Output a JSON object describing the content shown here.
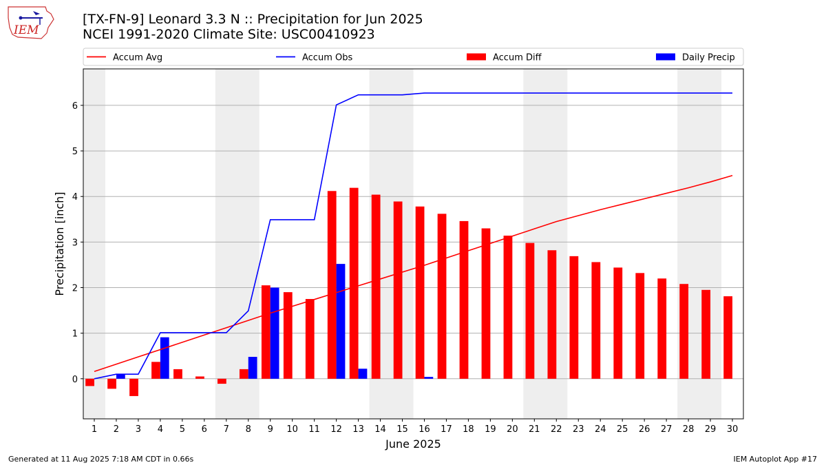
{
  "header": {
    "title_line1": "[TX-FN-9] Leonard 3.3 N :: Precipitation for Jun 2025",
    "title_line2": "NCEI 1991-2020 Climate Site: USC00410923",
    "logo_text": "IEM"
  },
  "footer": {
    "left": "Generated at 11 Aug 2025 7:18 AM CDT in 0.66s",
    "right": "IEM Autoplot App #17"
  },
  "colors": {
    "accum_avg": "#ff0000",
    "accum_obs": "#0000ff",
    "accum_diff": "#ff0000",
    "daily_precip": "#0000ff",
    "weekend_shade": "#eeeeee",
    "grid": "#b0b0b0"
  },
  "chart_data": {
    "type": "bar",
    "xlabel": "June 2025",
    "ylabel": "Precipitation [inch]",
    "xlim": [
      0.5,
      30.5
    ],
    "ylim": [
      -0.88,
      6.8
    ],
    "yticks": [
      0,
      1,
      2,
      3,
      4,
      5,
      6
    ],
    "grid": "horizontal",
    "legend_position": "top",
    "days": [
      1,
      2,
      3,
      4,
      5,
      6,
      7,
      8,
      9,
      10,
      11,
      12,
      13,
      14,
      15,
      16,
      17,
      18,
      19,
      20,
      21,
      22,
      23,
      24,
      25,
      26,
      27,
      28,
      29,
      30
    ],
    "shaded_days": [
      [
        1,
        1
      ],
      [
        7,
        8
      ],
      [
        14,
        15
      ],
      [
        21,
        22
      ],
      [
        28,
        29
      ]
    ],
    "series": [
      {
        "name": "Accum Avg",
        "type": "line",
        "values": [
          0.16,
          0.32,
          0.48,
          0.64,
          0.8,
          0.96,
          1.12,
          1.28,
          1.44,
          1.59,
          1.74,
          1.89,
          2.04,
          2.19,
          2.34,
          2.49,
          2.65,
          2.81,
          2.97,
          3.13,
          3.29,
          3.45,
          3.58,
          3.71,
          3.83,
          3.95,
          4.07,
          4.19,
          4.32,
          4.46
        ]
      },
      {
        "name": "Accum Obs",
        "type": "line",
        "values": [
          0.0,
          0.1,
          0.1,
          1.01,
          1.01,
          1.01,
          1.01,
          1.49,
          3.49,
          3.49,
          3.49,
          6.01,
          6.23,
          6.23,
          6.23,
          6.27,
          6.27,
          6.27,
          6.27,
          6.27,
          6.27,
          6.27,
          6.27,
          6.27,
          6.27,
          6.27,
          6.27,
          6.27,
          6.27,
          6.27
        ]
      },
      {
        "name": "Accum Diff",
        "type": "bar",
        "values": [
          -0.16,
          -0.22,
          -0.38,
          0.37,
          0.21,
          0.05,
          -0.11,
          0.21,
          2.05,
          1.9,
          1.75,
          4.12,
          4.19,
          4.04,
          3.89,
          3.78,
          3.62,
          3.46,
          3.3,
          3.14,
          2.98,
          2.82,
          2.69,
          2.56,
          2.44,
          2.32,
          2.2,
          2.08,
          1.95,
          1.81
        ]
      },
      {
        "name": "Daily Precip",
        "type": "bar",
        "values": [
          0.0,
          0.1,
          0.0,
          0.91,
          0.0,
          0.0,
          0.0,
          0.48,
          2.0,
          0.0,
          0.0,
          2.52,
          0.22,
          0.0,
          0.0,
          0.04,
          0.0,
          0.0,
          0.0,
          0.0,
          0.0,
          0.0,
          0.0,
          0.0,
          0.0,
          0.0,
          0.0,
          0.0,
          0.0,
          0.0
        ]
      }
    ]
  }
}
